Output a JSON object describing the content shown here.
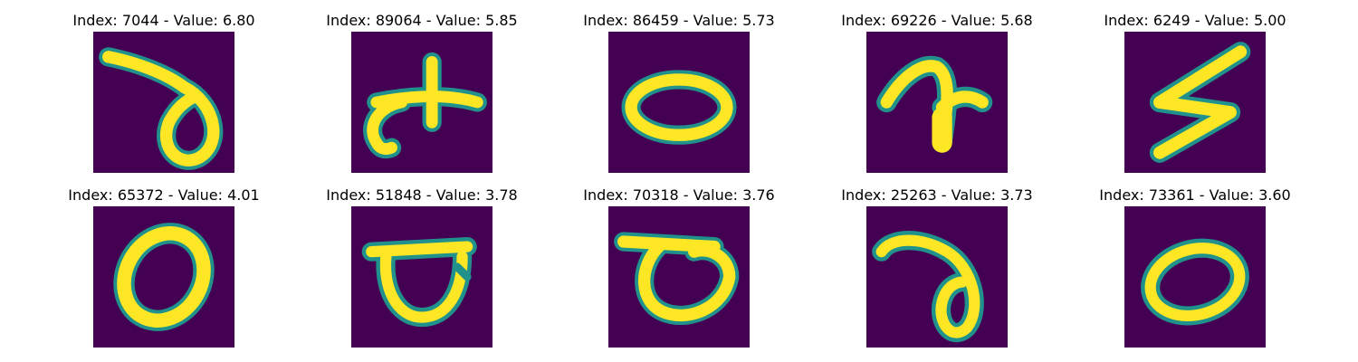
{
  "figure": {
    "background": "#ffffff",
    "image_background": "#440154",
    "stroke_edge_color": "#21918c",
    "stroke_core_color": "#fde725",
    "panels": [
      {
        "title": "Index: 7044 - Value: 6.80"
      },
      {
        "title": "Index: 89064 - Value: 5.85"
      },
      {
        "title": "Index: 86459 - Value: 5.73"
      },
      {
        "title": "Index: 69226 - Value: 5.68"
      },
      {
        "title": "Index: 6249 - Value: 5.00"
      },
      {
        "title": "Index: 65372 - Value: 4.01"
      },
      {
        "title": "Index: 51848 - Value: 3.78"
      },
      {
        "title": "Index: 70318 - Value: 3.76"
      },
      {
        "title": "Index: 25263 - Value: 3.73"
      },
      {
        "title": "Index: 73361 - Value: 3.60"
      }
    ]
  }
}
